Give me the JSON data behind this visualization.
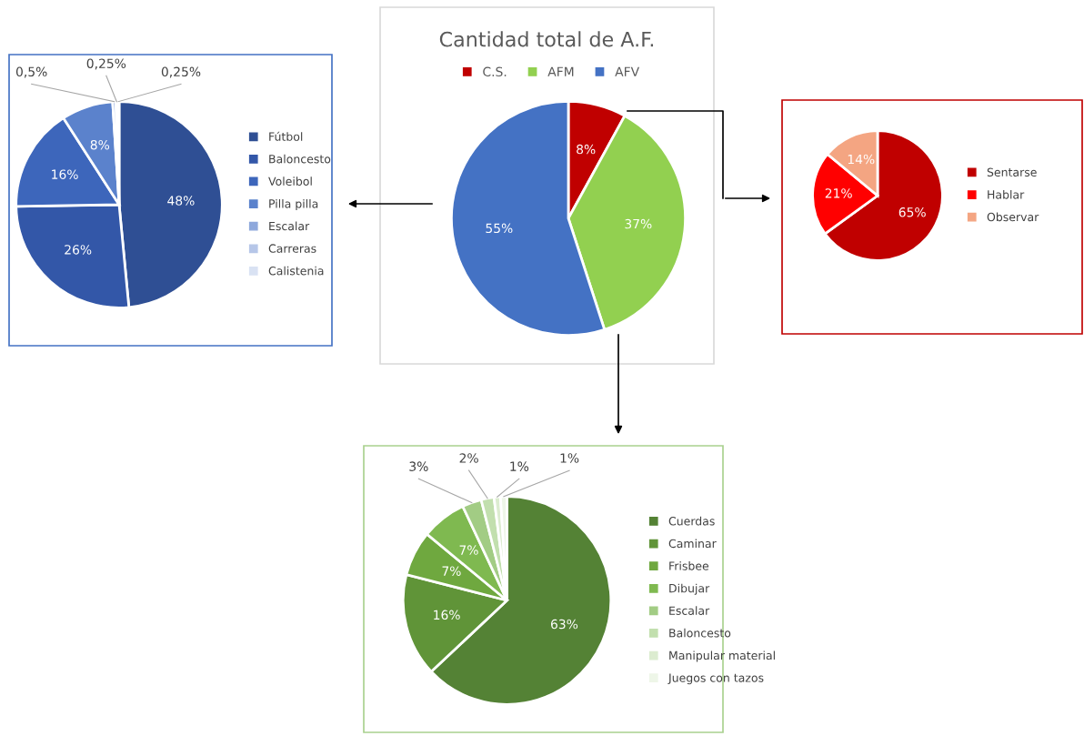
{
  "chart_data": [
    {
      "type": "pie",
      "categories": [
        "Fútbol",
        "Baloncesto",
        "Voleibol",
        "Pilla pilla",
        "Escalar",
        "Carreras",
        "Calistenia"
      ],
      "values": [
        48,
        26,
        16,
        8,
        0.5,
        0.25,
        0.25
      ],
      "value_labels": [
        "48%",
        "26%",
        "16%",
        "8%",
        "0,5%",
        "0,25%",
        "0,25%"
      ],
      "colors": [
        "#2f4f94",
        "#3357a8",
        "#3d66bb",
        "#5b82cc",
        "#8ea8dc",
        "#b6c6e8",
        "#d9e2f3"
      ],
      "legend": "right"
    },
    {
      "type": "pie",
      "title": "Cantidad total de A.F.",
      "categories": [
        "C.S.",
        "AFM",
        "AFV"
      ],
      "values": [
        8,
        37,
        55
      ],
      "value_labels": [
        "8%",
        "37%",
        "55%"
      ],
      "colors": [
        "#c00000",
        "#92d050",
        "#4472c4"
      ],
      "legend": "top"
    },
    {
      "type": "pie",
      "categories": [
        "Sentarse",
        "Hablar",
        "Observar"
      ],
      "values": [
        65,
        21,
        14
      ],
      "value_labels": [
        "65%",
        "21%",
        "14%"
      ],
      "colors": [
        "#c00000",
        "#ff0000",
        "#f4a582"
      ],
      "legend": "right"
    },
    {
      "type": "pie",
      "categories": [
        "Cuerdas",
        "Caminar",
        "Frisbee",
        "Dibujar",
        "Escalar",
        "Baloncesto",
        "Manipular material",
        "Juegos con tazos"
      ],
      "values": [
        63,
        16,
        7,
        7,
        3,
        2,
        1,
        1
      ],
      "value_labels": [
        "63%",
        "16%",
        "7%",
        "7%",
        "3%",
        "2%",
        "1%",
        "1%"
      ],
      "colors": [
        "#548235",
        "#609438",
        "#6fa83f",
        "#7fb950",
        "#a2cc84",
        "#c2dfae",
        "#dcecd0",
        "#eef6e8"
      ],
      "legend": "right"
    }
  ]
}
